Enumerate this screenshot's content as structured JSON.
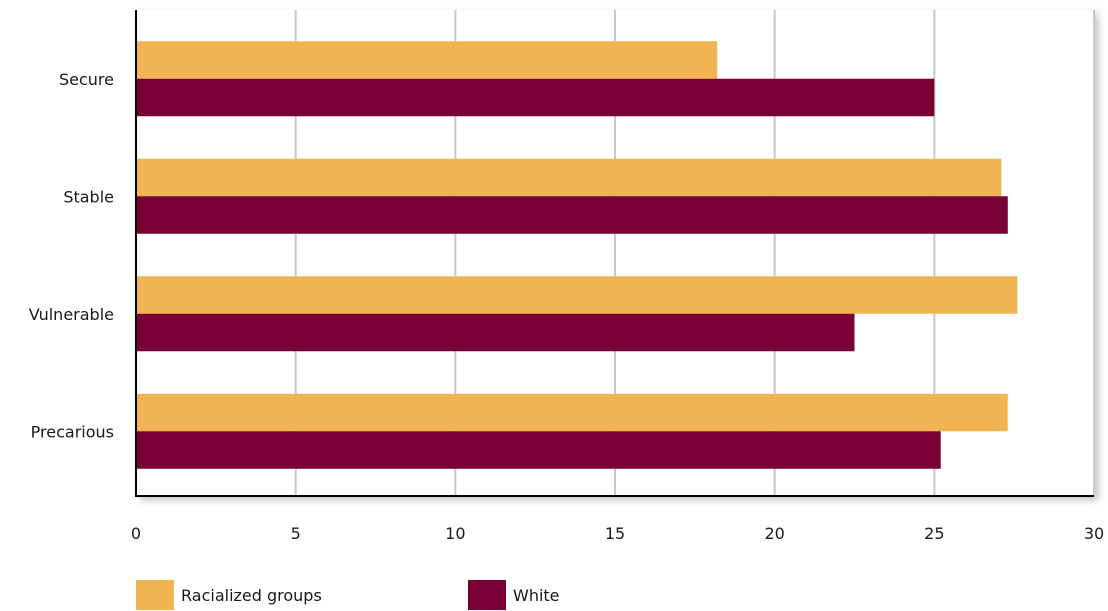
{
  "chart_data": {
    "type": "bar",
    "orientation": "horizontal",
    "categories": [
      "Secure",
      "Stable",
      "Vulnerable",
      "Precarious"
    ],
    "series": [
      {
        "name": "Racialized groups",
        "color": "#F0B552",
        "values": [
          18.2,
          27.1,
          27.6,
          27.3
        ]
      },
      {
        "name": "White",
        "color": "#780036",
        "values": [
          25.0,
          27.3,
          22.5,
          25.2
        ]
      }
    ],
    "xlim": [
      0,
      30
    ],
    "xticks": [
      "0",
      "5",
      "10",
      "15",
      "20",
      "25",
      "30"
    ],
    "grid": true,
    "legend_position": "bottom",
    "title": "",
    "xlabel": "",
    "ylabel": ""
  }
}
